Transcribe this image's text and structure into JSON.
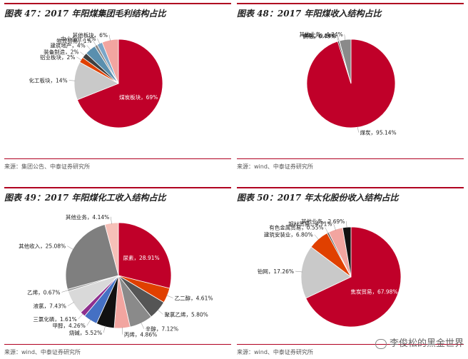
{
  "panels": [
    {
      "title": "图表 47：2017 年阳煤集团毛利结构占比",
      "source": "来源：集团公告、中泰证券研究所",
      "chart_data": {
        "type": "pie",
        "slices": [
          {
            "label": "煤炭板块，69%",
            "value": 69,
            "color": "#c00029"
          },
          {
            "label": "化工板块，14%",
            "value": 14,
            "color": "#c9c9c9"
          },
          {
            "label": "铝业板块，2%",
            "value": 2,
            "color": "#e04000"
          },
          {
            "label": "装备制造，2%",
            "value": 2,
            "color": "#404040"
          },
          {
            "label": "建筑地产，4%",
            "value": 4,
            "color": "#5a8fae"
          },
          {
            "label": "物流贸易，1%",
            "value": 1,
            "color": "#8a8a8a"
          },
          {
            "label": "中小企业，2%",
            "value": 2,
            "color": "#7aa6c8"
          },
          {
            "label": "其他板块，6%",
            "value": 6,
            "color": "#f2a5a0"
          }
        ]
      }
    },
    {
      "title": "图表 48：2017 年阳煤收入结构占比",
      "source": "来源：wind、中泰证券研究所",
      "chart_data": {
        "type": "pie",
        "slices": [
          {
            "label": "煤炭，95.14%",
            "value": 95.14,
            "color": "#c00029"
          },
          {
            "label": "供电，0.48%",
            "value": 0.48,
            "color": "#1a1a1a"
          },
          {
            "label": "供热，0.14%",
            "value": 0.14,
            "color": "#d9d9d9"
          },
          {
            "label": "其他业务，4.24%",
            "value": 4.24,
            "color": "#8a8a8a"
          }
        ]
      }
    },
    {
      "title": "图表 49：2017 年阳煤化工收入结构占比",
      "source": "来源：wind、中泰证券研究所",
      "chart_data": {
        "type": "pie",
        "slices": [
          {
            "label": "尿素，28.91%",
            "value": 28.91,
            "color": "#c00029"
          },
          {
            "label": "乙二醇，4.61%",
            "value": 4.61,
            "color": "#e04000"
          },
          {
            "label": "聚氯乙烯，5.80%",
            "value": 5.8,
            "color": "#555555"
          },
          {
            "label": "辛醇，7.12%",
            "value": 7.12,
            "color": "#8a8a8a"
          },
          {
            "label": "丙烯，4.86%",
            "value": 4.86,
            "color": "#f2a5a0"
          },
          {
            "label": "烧碱，5.52%",
            "value": 5.52,
            "color": "#111111"
          },
          {
            "label": "甲醇，4.26%",
            "value": 4.26,
            "color": "#4470c4"
          },
          {
            "label": "三氯化磷，1.61%",
            "value": 1.61,
            "color": "#8e2f8e"
          },
          {
            "label": "液氯，7.43%",
            "value": 7.43,
            "color": "#d9d9d9"
          },
          {
            "label": "乙烯，0.67%",
            "value": 0.67,
            "color": "#a0a0a0"
          },
          {
            "label": "其他收入，25.08%",
            "value": 25.08,
            "color": "#7f7f7f"
          },
          {
            "label": "其他业务，4.14%",
            "value": 4.14,
            "color": "#f6c0b8"
          }
        ]
      }
    },
    {
      "title": "图表 50：2017 年太化股份收入结构占比",
      "source": "来源：wind、中泰证券研究所",
      "chart_data": {
        "type": "pie",
        "slices": [
          {
            "label": "焦炭贸易，67.98%",
            "value": 67.98,
            "color": "#c00029"
          },
          {
            "label": "铂网，17.26%",
            "value": 17.26,
            "color": "#c9c9c9"
          },
          {
            "label": "建筑安装业，6.80%",
            "value": 6.8,
            "color": "#e04000"
          },
          {
            "label": "有色金属贸易，0.55%",
            "value": 0.55,
            "color": "#555555"
          },
          {
            "label": "钢材贸易，4.71%",
            "value": 4.71,
            "color": "#f2a5a0"
          },
          {
            "label": "其他业务，2.69%",
            "value": 2.69,
            "color": "#111111"
          }
        ]
      }
    }
  ],
  "watermark": "李俊松的黑金世界"
}
